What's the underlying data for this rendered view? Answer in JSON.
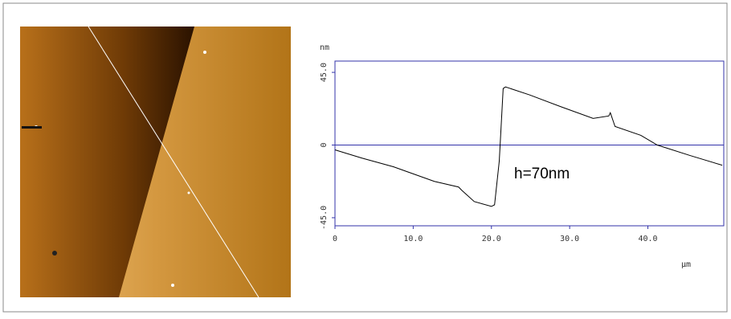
{
  "chart_data": {
    "type": "line",
    "y_label": "nm",
    "x_label": "µm",
    "annotation": "h=70nm",
    "x": [
      0,
      3.4,
      7.5,
      12.7,
      15.8,
      16.2,
      17.8,
      20,
      20.4,
      21.0,
      21.5,
      21.8,
      24.9,
      29,
      33,
      35.0,
      35.2,
      35.8,
      39.1,
      41.2,
      45.4,
      49.5
    ],
    "series": [
      {
        "color": "#000000",
        "values": [
          -3,
          -8,
          -13.5,
          -22.5,
          -26,
          -28,
          -35,
          -38,
          -37,
          -10,
          35,
          36,
          31,
          23.5,
          16.5,
          18,
          20,
          11.5,
          6,
          0,
          -6.5,
          -12.5
        ]
      }
    ],
    "xlim": [
      0,
      49.7
    ],
    "ylim": [
      -50,
      52
    ],
    "xticks": [
      0,
      {
        "value": 10,
        "label": "10.0"
      },
      {
        "value": 20,
        "label": "20.0"
      },
      {
        "value": 30,
        "label": "30.0"
      },
      {
        "value": 40,
        "label": "40.0"
      }
    ],
    "yticks": [
      {
        "value": -45,
        "label": "-45.0"
      },
      0,
      {
        "value": 45,
        "label": "45.0"
      }
    ],
    "axis_color": "#3333aa"
  }
}
